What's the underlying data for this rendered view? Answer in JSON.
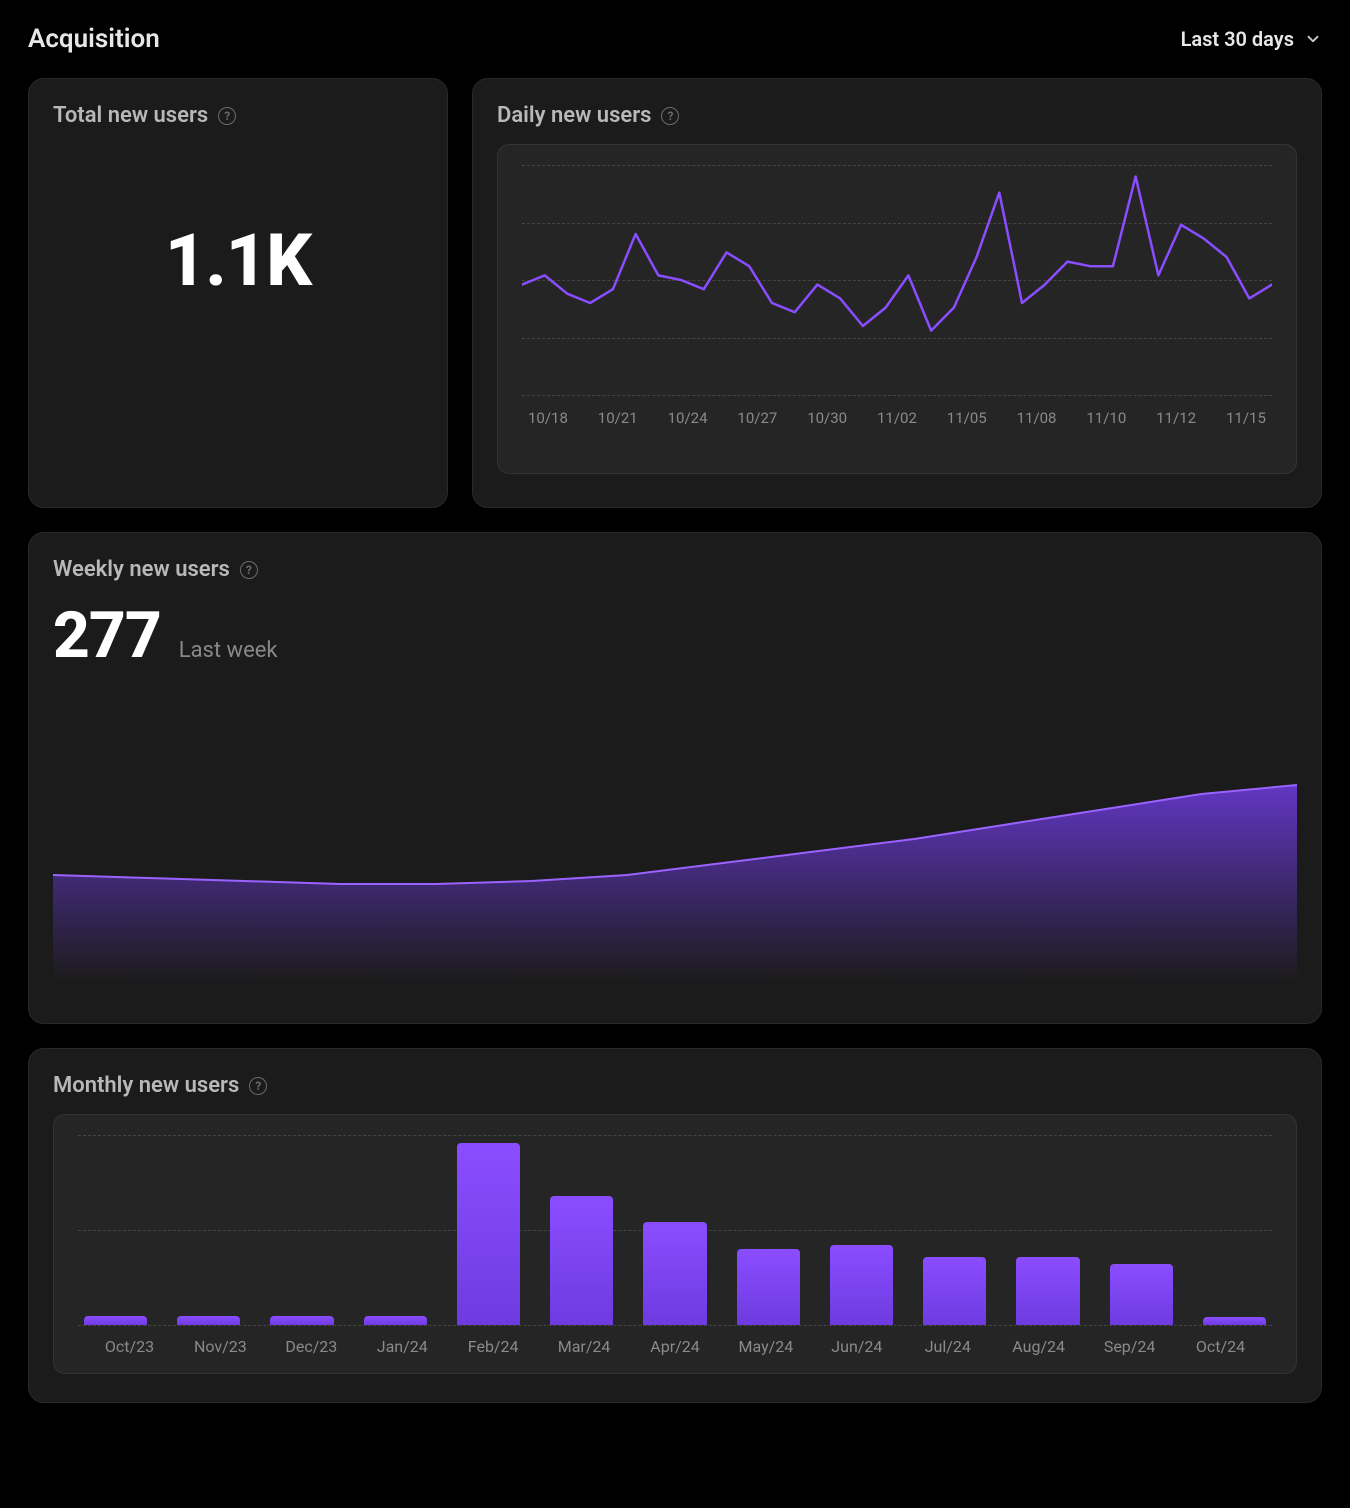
{
  "header": {
    "title": "Acquisition",
    "range_label": "Last 30 days"
  },
  "colors": {
    "card_bg": "#1b1b1b",
    "inner_bg": "#252525",
    "grid": "#444444",
    "text_muted": "#8a8a8a",
    "accent": "#8a4dff",
    "accent_dark": "#5d30c2",
    "area_top": "#7b3efc",
    "area_bottom": "rgba(92,48,194,0)"
  },
  "total_card": {
    "title": "Total new users",
    "value": "1.1K"
  },
  "daily_card": {
    "title": "Daily new users",
    "chart": {
      "type": "line",
      "line_color": "#8a4dff",
      "line_width": 2.5,
      "grid_color": "#444444",
      "grid_rows": 5,
      "x_labels": [
        "10/18",
        "10/21",
        "10/24",
        "10/27",
        "10/30",
        "11/02",
        "11/05",
        "11/08",
        "11/10",
        "11/12",
        "11/15"
      ],
      "y_min": 0,
      "y_max": 100,
      "values": [
        48,
        52,
        44,
        40,
        46,
        70,
        52,
        50,
        46,
        62,
        56,
        40,
        36,
        48,
        42,
        30,
        38,
        52,
        28,
        38,
        60,
        88,
        40,
        48,
        58,
        56,
        56,
        95,
        52,
        74,
        68,
        60,
        42,
        48
      ]
    }
  },
  "weekly_card": {
    "title": "Weekly new users",
    "value": "277",
    "subtitle": "Last week",
    "chart": {
      "type": "area",
      "line_color": "#9a63ff",
      "line_width": 2,
      "fill_top": "#6e3be0",
      "fill_bottom": "rgba(60,30,130,0)",
      "y_min": 0,
      "y_max": 100,
      "values": [
        36,
        35,
        34,
        33,
        33,
        34,
        36,
        40,
        44,
        48,
        53,
        58,
        63,
        66
      ]
    }
  },
  "monthly_card": {
    "title": "Monthly new users",
    "chart": {
      "type": "bar",
      "bar_color_top": "#8a4dff",
      "bar_color_bottom": "#6e3be0",
      "grid_color": "#444444",
      "grid_rows": 3,
      "y_min": 0,
      "y_max": 100,
      "categories": [
        "Oct/23",
        "Nov/23",
        "Dec/23",
        "Jan/24",
        "Feb/24",
        "Mar/24",
        "Apr/24",
        "May/24",
        "Jun/24",
        "Jul/24",
        "Aug/24",
        "Sep/24",
        "Oct/24"
      ],
      "values": [
        5,
        5,
        5,
        5,
        96,
        68,
        54,
        40,
        42,
        36,
        36,
        32,
        4
      ]
    }
  }
}
